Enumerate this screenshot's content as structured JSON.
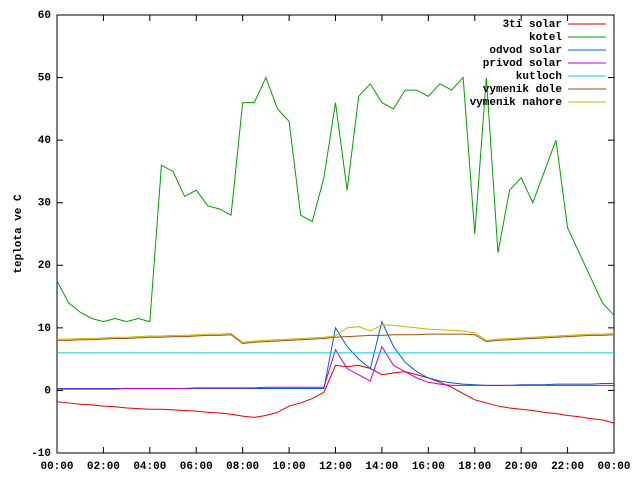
{
  "chart_data": {
    "type": "line",
    "ylabel": "teplota ve C",
    "x": [
      0,
      0.5,
      1,
      1.5,
      2,
      2.5,
      3,
      3.5,
      4,
      4.5,
      5,
      5.5,
      6,
      6.5,
      7,
      7.5,
      8,
      8.5,
      9,
      9.5,
      10,
      10.5,
      11,
      11.5,
      12,
      12.5,
      13,
      13.5,
      14,
      14.5,
      15,
      15.5,
      16,
      16.5,
      17,
      17.5,
      18,
      18.5,
      19,
      19.5,
      20,
      20.5,
      21,
      21.5,
      22,
      22.5,
      23,
      23.5,
      24
    ],
    "xlim": [
      0,
      24
    ],
    "xticks": [
      {
        "value": 0,
        "label": "00:00"
      },
      {
        "value": 2,
        "label": "02:00"
      },
      {
        "value": 4,
        "label": "04:00"
      },
      {
        "value": 6,
        "label": "06:00"
      },
      {
        "value": 8,
        "label": "08:00"
      },
      {
        "value": 10,
        "label": "10:00"
      },
      {
        "value": 12,
        "label": "12:00"
      },
      {
        "value": 14,
        "label": "14:00"
      },
      {
        "value": 16,
        "label": "16:00"
      },
      {
        "value": 18,
        "label": "18:00"
      },
      {
        "value": 20,
        "label": "20:00"
      },
      {
        "value": 22,
        "label": "22:00"
      },
      {
        "value": 24,
        "label": "00:00"
      }
    ],
    "ylim": [
      -10,
      60
    ],
    "yticks": [
      -10,
      0,
      10,
      20,
      30,
      40,
      50,
      60
    ],
    "grid": false,
    "legend": "top right",
    "series": [
      {
        "name": "3ti solar",
        "color": "#e00000",
        "values": [
          -1.8,
          -2,
          -2.2,
          -2.3,
          -2.5,
          -2.6,
          -2.8,
          -2.9,
          -3,
          -3,
          -3.1,
          -3.2,
          -3.3,
          -3.5,
          -3.6,
          -3.8,
          -4.1,
          -4.3,
          -4,
          -3.5,
          -2.5,
          -2,
          -1.3,
          -0.3,
          4,
          3.8,
          4,
          3.5,
          2.5,
          2.8,
          3,
          2.5,
          2,
          1.3,
          0.5,
          -0.5,
          -1.5,
          -2,
          -2.5,
          -2.8,
          -3,
          -3.2,
          -3.5,
          -3.7,
          -4,
          -4.2,
          -4.5,
          -4.7,
          -5.2
        ]
      },
      {
        "name": "kotel",
        "color": "#00a000",
        "values": [
          17.5,
          14,
          12.5,
          11.5,
          11,
          11.5,
          11,
          11.5,
          11,
          36,
          35,
          31,
          32,
          29.5,
          29,
          28,
          46,
          46,
          50,
          45,
          43,
          28,
          27,
          34,
          46,
          32,
          47,
          49,
          46,
          45,
          48,
          48,
          47,
          49,
          48,
          50,
          25,
          50,
          22,
          32,
          34,
          30,
          35,
          40,
          26,
          22,
          18,
          14,
          12
        ]
      },
      {
        "name": "odvod solar",
        "color": "#0060e0",
        "values": [
          0.3,
          0.3,
          0.3,
          0.3,
          0.3,
          0.3,
          0.3,
          0.3,
          0.3,
          0.3,
          0.3,
          0.3,
          0.3,
          0.3,
          0.3,
          0.3,
          0.3,
          0.3,
          0.3,
          0.3,
          0.3,
          0.3,
          0.3,
          0.3,
          10,
          7,
          5,
          3.5,
          11,
          7,
          4.5,
          3,
          2,
          1.5,
          1.2,
          1,
          0.9,
          0.8,
          0.8,
          0.8,
          0.9,
          0.9,
          0.9,
          1,
          1,
          1,
          1,
          1.1,
          1.1
        ]
      },
      {
        "name": "privod solar",
        "color": "#c000c0",
        "values": [
          0.2,
          0.2,
          0.2,
          0.2,
          0.2,
          0.2,
          0.3,
          0.3,
          0.3,
          0.3,
          0.3,
          0.3,
          0.4,
          0.4,
          0.4,
          0.4,
          0.4,
          0.4,
          0.5,
          0.5,
          0.5,
          0.5,
          0.5,
          0.5,
          6.5,
          3.5,
          2.5,
          1.5,
          7,
          4,
          3,
          2,
          1.3,
          1,
          0.8,
          0.8,
          0.8,
          0.8,
          0.8,
          0.8,
          0.8,
          0.8,
          0.8,
          0.8,
          0.8,
          0.8,
          0.8,
          0.8,
          0.8
        ]
      },
      {
        "name": "kutloch",
        "color": "#00d0d0",
        "values": [
          6,
          6,
          6,
          6,
          6,
          6,
          6,
          6,
          6,
          6,
          6,
          6,
          6,
          6,
          6,
          6,
          6,
          6,
          6,
          6,
          6,
          6,
          6,
          6,
          6,
          6,
          6,
          6,
          6,
          6,
          6,
          6,
          6,
          6,
          6,
          6,
          6,
          6,
          6,
          6,
          6,
          6,
          6,
          6,
          6,
          6,
          6,
          6,
          6
        ]
      },
      {
        "name": "vymenik dole",
        "color": "#a05000",
        "values": [
          8,
          8,
          8.1,
          8.1,
          8.2,
          8.3,
          8.3,
          8.4,
          8.5,
          8.5,
          8.6,
          8.6,
          8.7,
          8.8,
          8.8,
          8.9,
          7.5,
          7.7,
          7.8,
          7.9,
          8,
          8.1,
          8.2,
          8.3,
          8.5,
          8.6,
          8.7,
          8.8,
          8.8,
          8.9,
          8.9,
          8.9,
          9,
          9,
          9,
          9,
          8.9,
          7.8,
          8,
          8.1,
          8.2,
          8.3,
          8.4,
          8.5,
          8.6,
          8.7,
          8.8,
          8.8,
          8.9
        ]
      },
      {
        "name": "vymenik nahore",
        "color": "#c8b400",
        "values": [
          8.2,
          8.2,
          8.3,
          8.3,
          8.4,
          8.5,
          8.5,
          8.6,
          8.7,
          8.7,
          8.8,
          8.8,
          8.9,
          9,
          9,
          9.1,
          7.7,
          7.9,
          8,
          8.1,
          8.2,
          8.3,
          8.4,
          8.5,
          8.7,
          10,
          10.2,
          9.5,
          10.5,
          10.4,
          10.2,
          10,
          9.8,
          9.7,
          9.6,
          9.5,
          9.2,
          8,
          8.2,
          8.3,
          8.4,
          8.5,
          8.6,
          8.7,
          8.8,
          8.9,
          9,
          9,
          9.1
        ]
      }
    ]
  }
}
